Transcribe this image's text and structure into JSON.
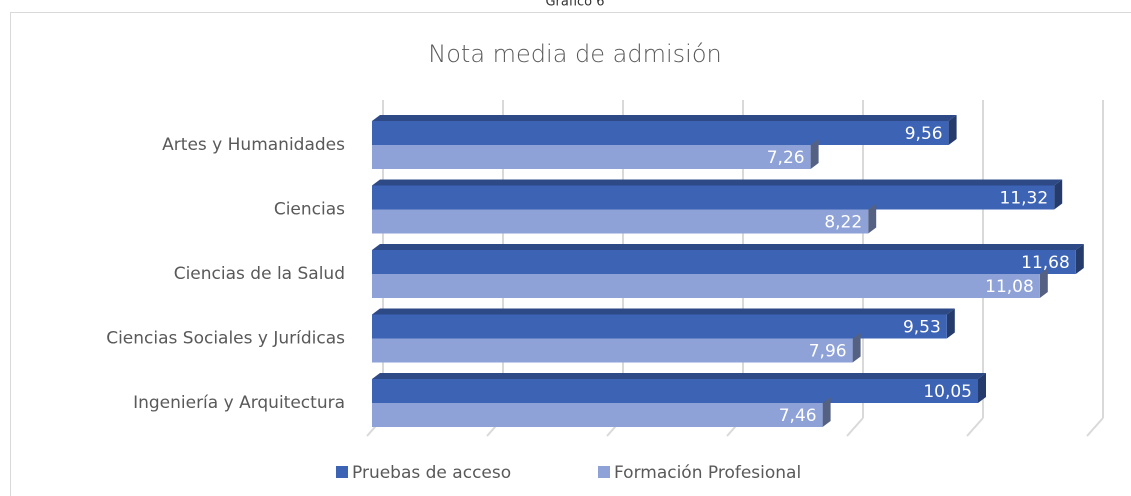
{
  "caption": "Gráfico 6",
  "chart_data": {
    "type": "barh",
    "title": "Nota media de admisión",
    "categories": [
      "Artes y Humanidades",
      "Ciencias",
      "Ciencias de la Salud",
      "Ciencias Sociales y Jurídicas",
      "Ingeniería y Arquitectura"
    ],
    "series": [
      {
        "name": "Pruebas de acceso",
        "color": "#3c63b4",
        "values": [
          9.56,
          11.32,
          11.68,
          9.53,
          10.05
        ],
        "value_labels": [
          "9,56",
          "11,32",
          "11,68",
          "9,53",
          "10,05"
        ]
      },
      {
        "name": "Formación Profesional",
        "color": "#8ea2d8",
        "values": [
          7.26,
          8.22,
          11.08,
          7.96,
          7.46
        ],
        "value_labels": [
          "7,26",
          "8,22",
          "11,08",
          "7,96",
          "7,46"
        ]
      }
    ],
    "xlim": [
      0,
      12
    ],
    "xticks": [
      0,
      2,
      4,
      6,
      8,
      10,
      12
    ],
    "grid": true,
    "legend": "bottom"
  }
}
